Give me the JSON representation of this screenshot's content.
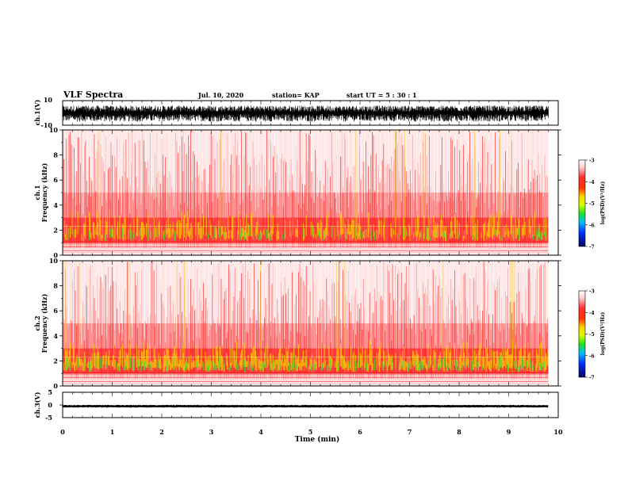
{
  "header": {
    "title": "VLF Spectra",
    "date": "Jul. 10, 2020",
    "station": "station= KAP",
    "start_ut": "start UT =  5 : 30 : 1"
  },
  "chart_data": [
    {
      "id": "ch1-waveform",
      "type": "line",
      "ylabel": "ch.1(V)",
      "ylim": [
        -10,
        10
      ],
      "y_ticks": [
        "10",
        "-10"
      ],
      "xlim": [
        0,
        10
      ],
      "description_values": {
        "signal_range": [
          -8,
          6
        ]
      }
    },
    {
      "id": "ch1-spectrogram",
      "type": "heatmap",
      "ylabel": "ch.1\nFrequency (kHz)",
      "ylabel_lines": [
        "ch.1",
        "Frequency (kHz)"
      ],
      "ylim": [
        0,
        10
      ],
      "y_ticks": [
        "0",
        "2",
        "4",
        "6",
        "8",
        "10"
      ],
      "xlim": [
        0,
        10
      ],
      "data_end_min": 9.8,
      "colorbar": {
        "label": "log(PSD)(V²/Hz)",
        "range": [
          -7,
          -3
        ],
        "ticks": [
          "-3",
          "-4",
          "-5",
          "-6",
          "-7"
        ]
      }
    },
    {
      "id": "ch2-spectrogram",
      "type": "heatmap",
      "ylabel_lines": [
        "ch.2",
        "Frequency (kHz)"
      ],
      "ylim": [
        0,
        10
      ],
      "y_ticks": [
        "0",
        "2",
        "4",
        "6",
        "8",
        "10"
      ],
      "xlim": [
        0,
        10
      ],
      "data_end_min": 9.8,
      "colorbar": {
        "label": "log(PSD)(V²/Hz)",
        "range": [
          -7,
          -3
        ],
        "ticks": [
          "-3",
          "-4",
          "-5",
          "-6",
          "-7"
        ]
      }
    },
    {
      "id": "ch3-waveform",
      "type": "line",
      "ylabel": "ch.3(V)",
      "ylim": [
        -5,
        5
      ],
      "y_ticks": [
        "5",
        "0",
        "-5"
      ],
      "xlim": [
        0,
        10
      ],
      "x_ticks": [
        "0",
        "1",
        "2",
        "3",
        "4",
        "5",
        "6",
        "7",
        "8",
        "9",
        "10"
      ],
      "xlabel": "Time (min)",
      "description_values": {
        "signal_level": -0.5
      }
    }
  ],
  "colors": {
    "background_red": "#ff2020",
    "mid_yellow": "#ffd000",
    "low_green": "#20e020",
    "trace": "#000000"
  }
}
